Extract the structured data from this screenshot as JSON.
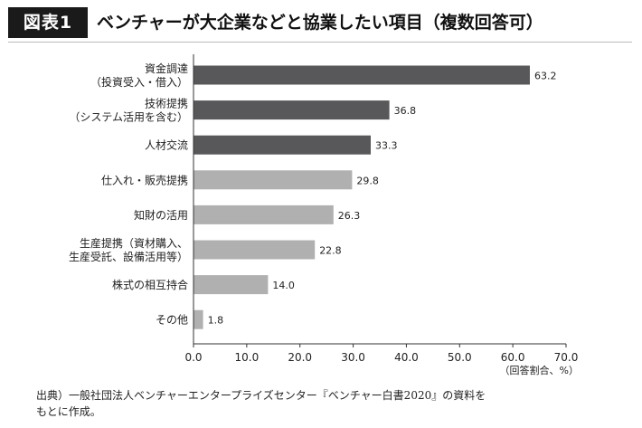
{
  "header": {
    "figure_label": "図表1",
    "title": "ベンチャーが大企業などと協業したい項目（複数回答可）"
  },
  "chart_data": {
    "type": "bar",
    "orientation": "horizontal",
    "categories": [
      [
        "資金調達",
        "（投資受入・借入）"
      ],
      [
        "技術提携",
        "（システム活用を含む）"
      ],
      [
        "人材交流"
      ],
      [
        "仕入れ・販売提携"
      ],
      [
        "知財の活用"
      ],
      [
        "生産提携（資材購入、",
        "生産受託、設備活用等）"
      ],
      [
        "株式の相互持合"
      ],
      [
        "その他"
      ]
    ],
    "values": [
      63.2,
      36.8,
      33.3,
      29.8,
      26.3,
      22.8,
      14.0,
      1.8
    ],
    "value_labels": [
      "63.2",
      "36.8",
      "33.3",
      "29.8",
      "26.3",
      "22.8",
      "14.0",
      "1.8"
    ],
    "bar_colors": [
      "#58585a",
      "#58585a",
      "#58585a",
      "#b0b0b0",
      "#b0b0b0",
      "#b0b0b0",
      "#b0b0b0",
      "#b0b0b0"
    ],
    "xlim": [
      0,
      70
    ],
    "xticks": [
      0,
      10,
      20,
      30,
      40,
      50,
      60,
      70
    ],
    "xtick_labels": [
      "0.0",
      "10.0",
      "20.0",
      "30.0",
      "40.0",
      "50.0",
      "60.0",
      "70.0"
    ],
    "xlabel": "（回答割合、%）",
    "ylabel": "",
    "grid": false
  },
  "footnote": {
    "line1": "出典）一般社団法人ベンチャーエンタープライズセンター『ベンチャー白書2020』の資料を",
    "line2": "もとに作成。"
  }
}
